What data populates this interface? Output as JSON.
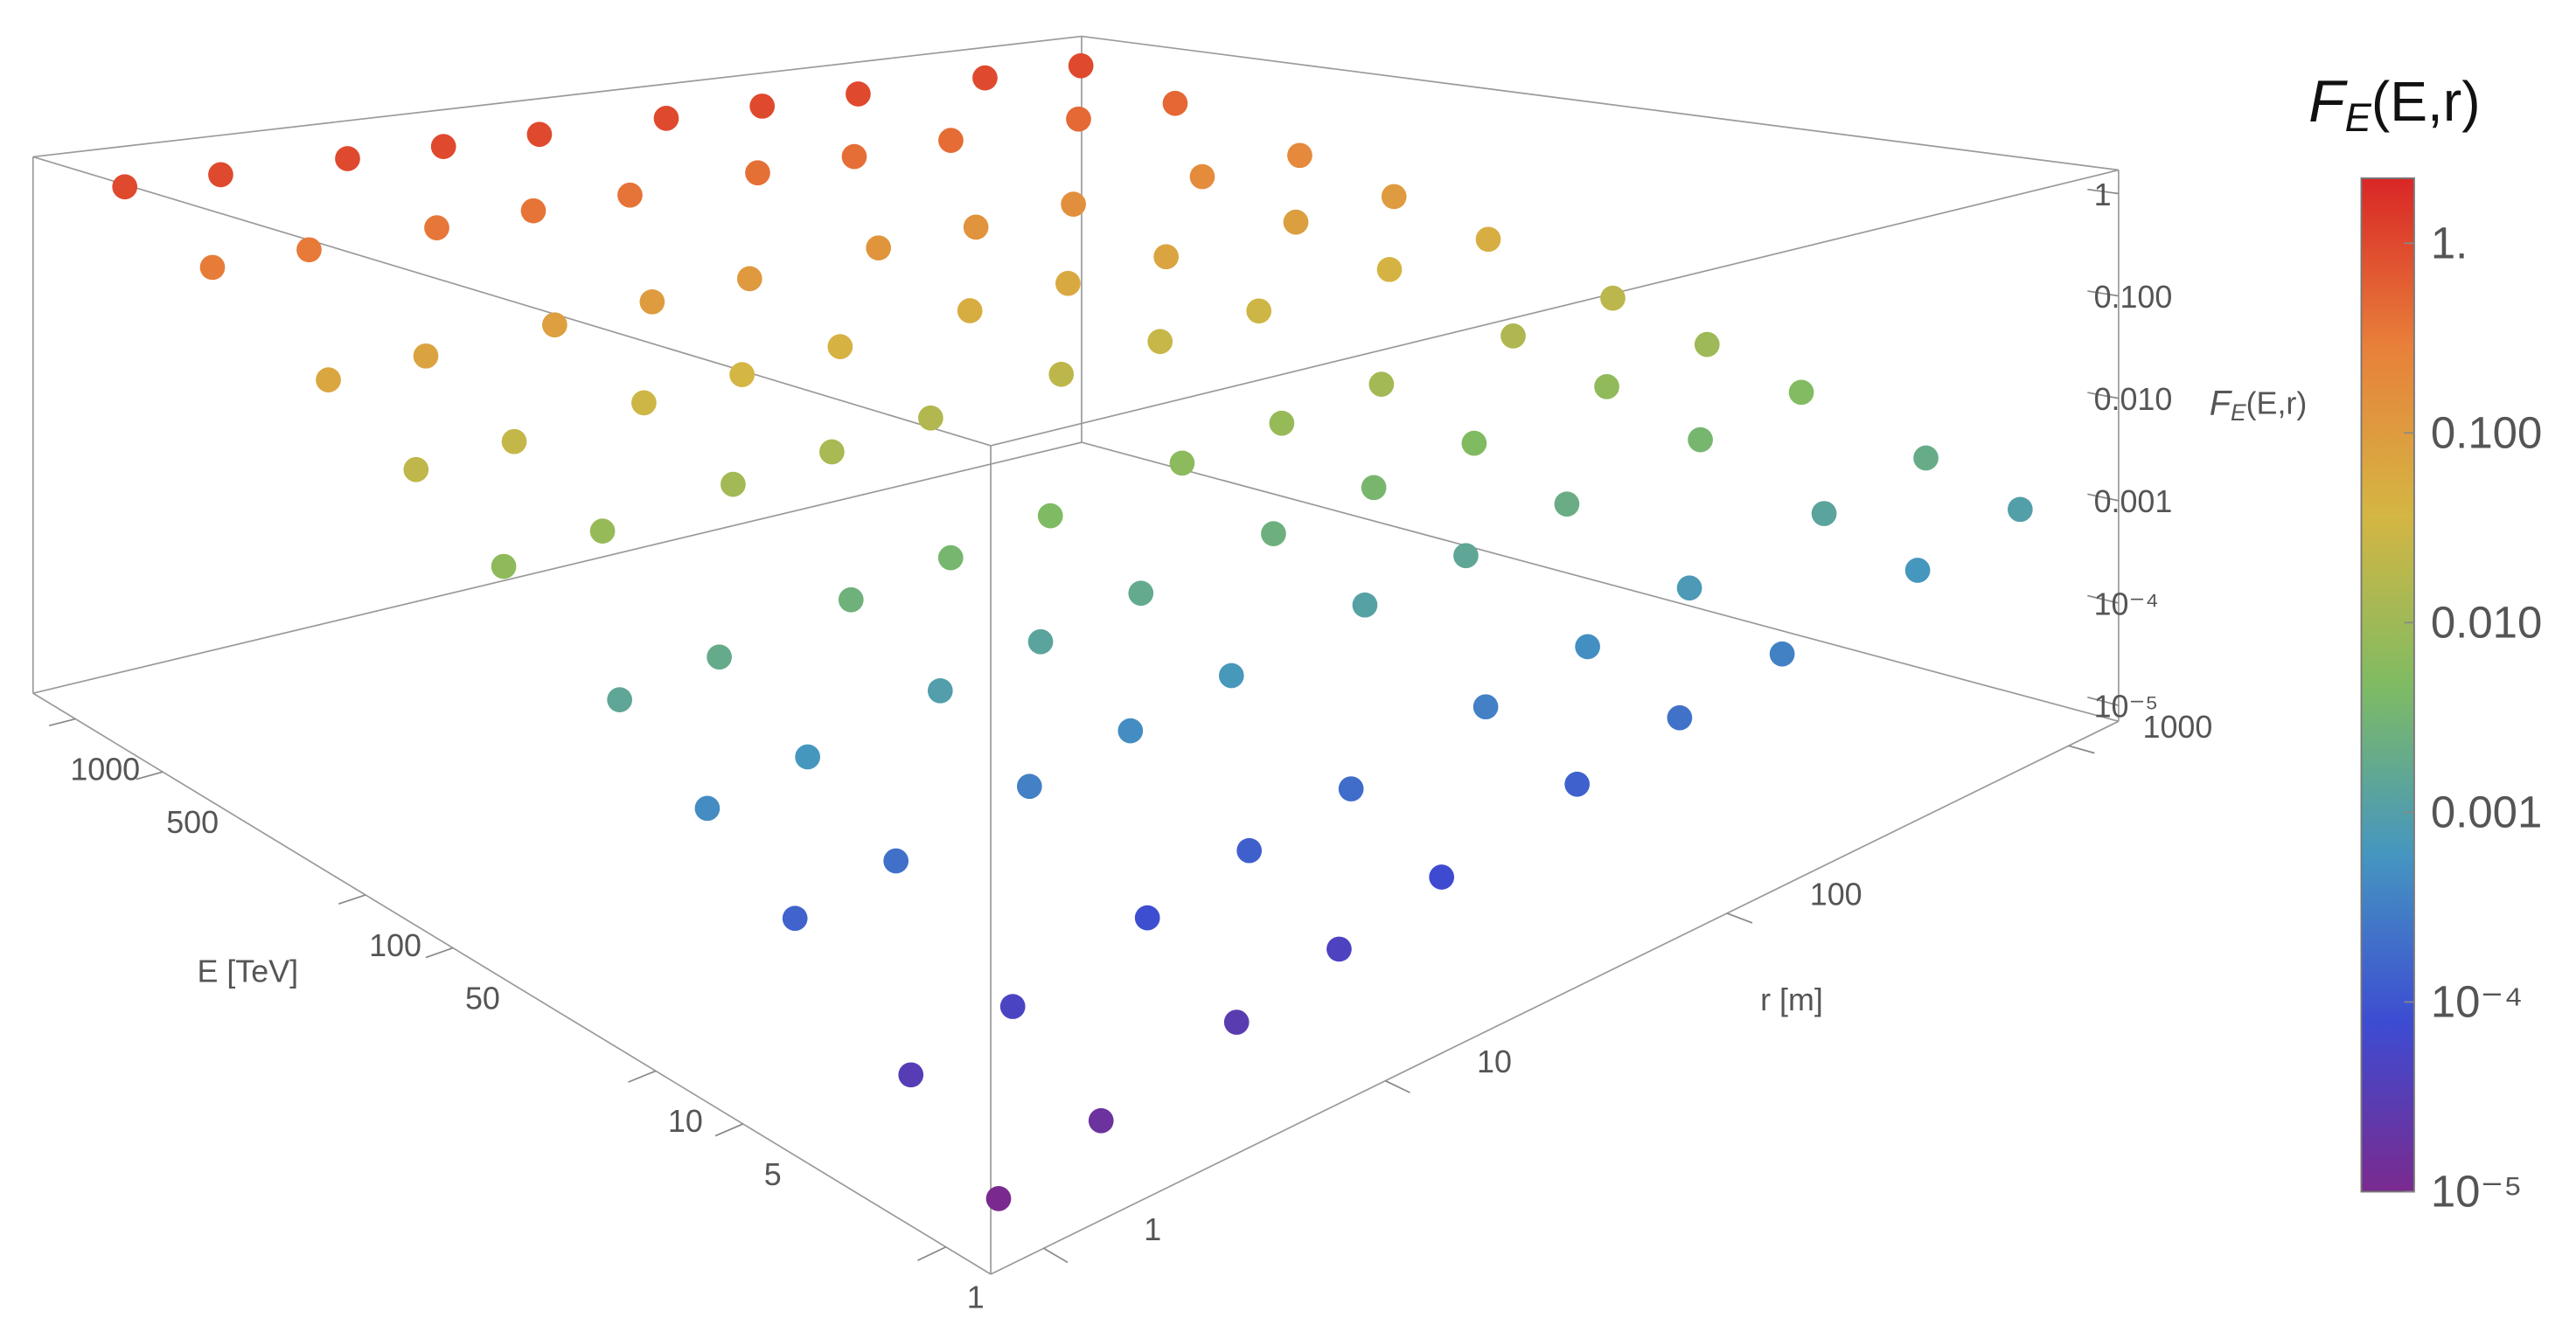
{
  "chart_data": {
    "type": "scatter3d",
    "xlabel": "E [TeV]",
    "ylabel": "r [m]",
    "zlabel": {
      "symbol": "F",
      "subscript": "E",
      "args": "(E,r)"
    },
    "xscale": "log",
    "yscale": "log",
    "zscale": "log",
    "x": [
      1,
      2,
      5,
      10,
      20,
      50,
      100,
      200,
      500,
      1000
    ],
    "y": [
      1,
      2,
      5,
      10,
      20,
      50,
      100,
      200,
      500,
      1000
    ],
    "values": [
      [
        1e-05,
        1.6e-05,
        2.9e-05,
        4.6e-05,
        7.4e-05,
        0.00014,
        0.00022,
        0.00034,
        0.00063,
        0.001
      ],
      [
        3.2e-05,
        4.8e-05,
        8.3e-05,
        0.00013,
        0.00019,
        0.00033,
        0.0005,
        0.00076,
        0.0013,
        0.002
      ],
      [
        0.00015,
        0.00021,
        0.00033,
        0.00047,
        0.00068,
        0.0011,
        0.0015,
        0.0022,
        0.0035,
        0.005
      ],
      [
        0.00046,
        0.00063,
        0.00095,
        0.0013,
        0.0018,
        0.0026,
        0.0036,
        0.0049,
        0.0073,
        0.01
      ],
      [
        0.0015,
        0.0019,
        0.0027,
        0.0035,
        0.0046,
        0.0064,
        0.0084,
        0.011,
        0.015,
        0.02
      ],
      [
        0.0068,
        0.0083,
        0.011,
        0.013,
        0.016,
        0.021,
        0.026,
        0.031,
        0.041,
        0.05
      ],
      [
        0.022,
        0.025,
        0.031,
        0.036,
        0.042,
        0.051,
        0.06,
        0.07,
        0.086,
        0.1
      ],
      [
        0.068,
        0.076,
        0.088,
        0.098,
        0.11,
        0.13,
        0.14,
        0.16,
        0.18,
        0.2
      ],
      [
        0.31,
        0.33,
        0.35,
        0.37,
        0.38,
        0.41,
        0.43,
        0.45,
        0.48,
        0.5
      ],
      [
        1,
        1,
        1,
        1,
        1,
        1,
        1,
        1,
        1,
        1
      ]
    ],
    "xlim": [
      0.7,
      1400
    ],
    "ylim": [
      0.7,
      1400
    ],
    "zlim": [
      7e-06,
      1.7
    ],
    "xticks": [
      1,
      5,
      10,
      50,
      100,
      500,
      1000
    ],
    "yticks": [
      1,
      10,
      100,
      1000
    ],
    "zticks": [
      1,
      {
        "value": 0.1,
        "label": "0.100"
      },
      {
        "value": 0.01,
        "label": "0.010"
      },
      0.001,
      {
        "value": 0.0001,
        "label": "10⁻⁴"
      },
      {
        "value": 1e-05,
        "label": "10⁻⁵"
      }
    ],
    "colorbar": {
      "lim": [
        1e-05,
        2.2
      ],
      "ticks": [
        {
          "value": 1,
          "label": "1."
        },
        {
          "value": 0.1,
          "label": "0.100"
        },
        {
          "value": 0.01,
          "label": "0.010"
        },
        {
          "value": 0.001,
          "label": "0.001"
        },
        {
          "value": 0.0001,
          "label": "10⁻⁴"
        },
        {
          "value": 1e-05,
          "label": "10⁻⁵"
        }
      ],
      "colors": [
        "#7a2a8e",
        "#3d4cd2",
        "#4596c0",
        "#7fbb62",
        "#d4b643",
        "#e8803a",
        "#d92626"
      ]
    }
  }
}
